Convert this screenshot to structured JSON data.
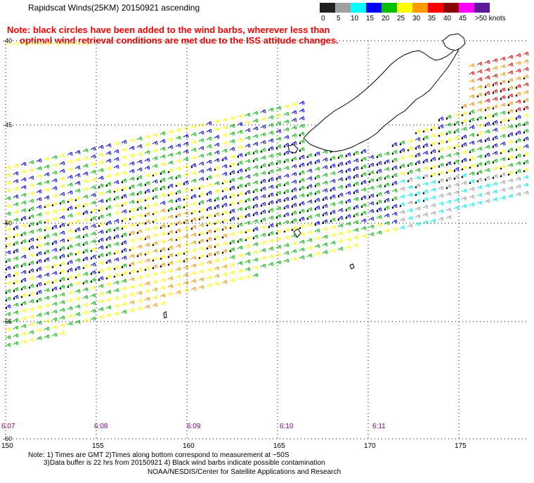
{
  "title": "Rapidscat Winds(25KM) 20150921 ascending",
  "note_lines": [
    "Note: black circles have been added to the wind barbs, wherever less than",
    "optimal wind retrieval conditions are met due to the ISS attitude changes."
  ],
  "colorbar": {
    "labels": [
      "0",
      "5",
      "10",
      "15",
      "20",
      "25",
      "30",
      "35",
      "40",
      "45",
      ">50 knots"
    ],
    "colors": [
      "#202020",
      "#a0a0a0",
      "#00ffff",
      "#0000ff",
      "#00c000",
      "#ffff00",
      "#ff9900",
      "#ff0000",
      "#8b0000",
      "#ff00ff",
      "#5a1a9a"
    ]
  },
  "map": {
    "lon_ticks": [
      "150",
      "155",
      "160",
      "165",
      "170",
      "175"
    ],
    "lat_ticks": [
      "-40",
      "-45",
      "-50",
      "-55",
      "-60"
    ],
    "time_labels": [
      "6:07",
      "6:08",
      "6:09",
      "6:10",
      "6:11"
    ]
  },
  "footer": {
    "line1": "Note: 1) Times are GMT 2)Times along bottom correspond to measurement at ~50S",
    "line2": "3)Data buffer is 22 hrs from 20150921 4) Black wind barbs indicate possible contamination",
    "line3": "NOAA/NESDIS/Center for Satellite Applications and Research"
  }
}
